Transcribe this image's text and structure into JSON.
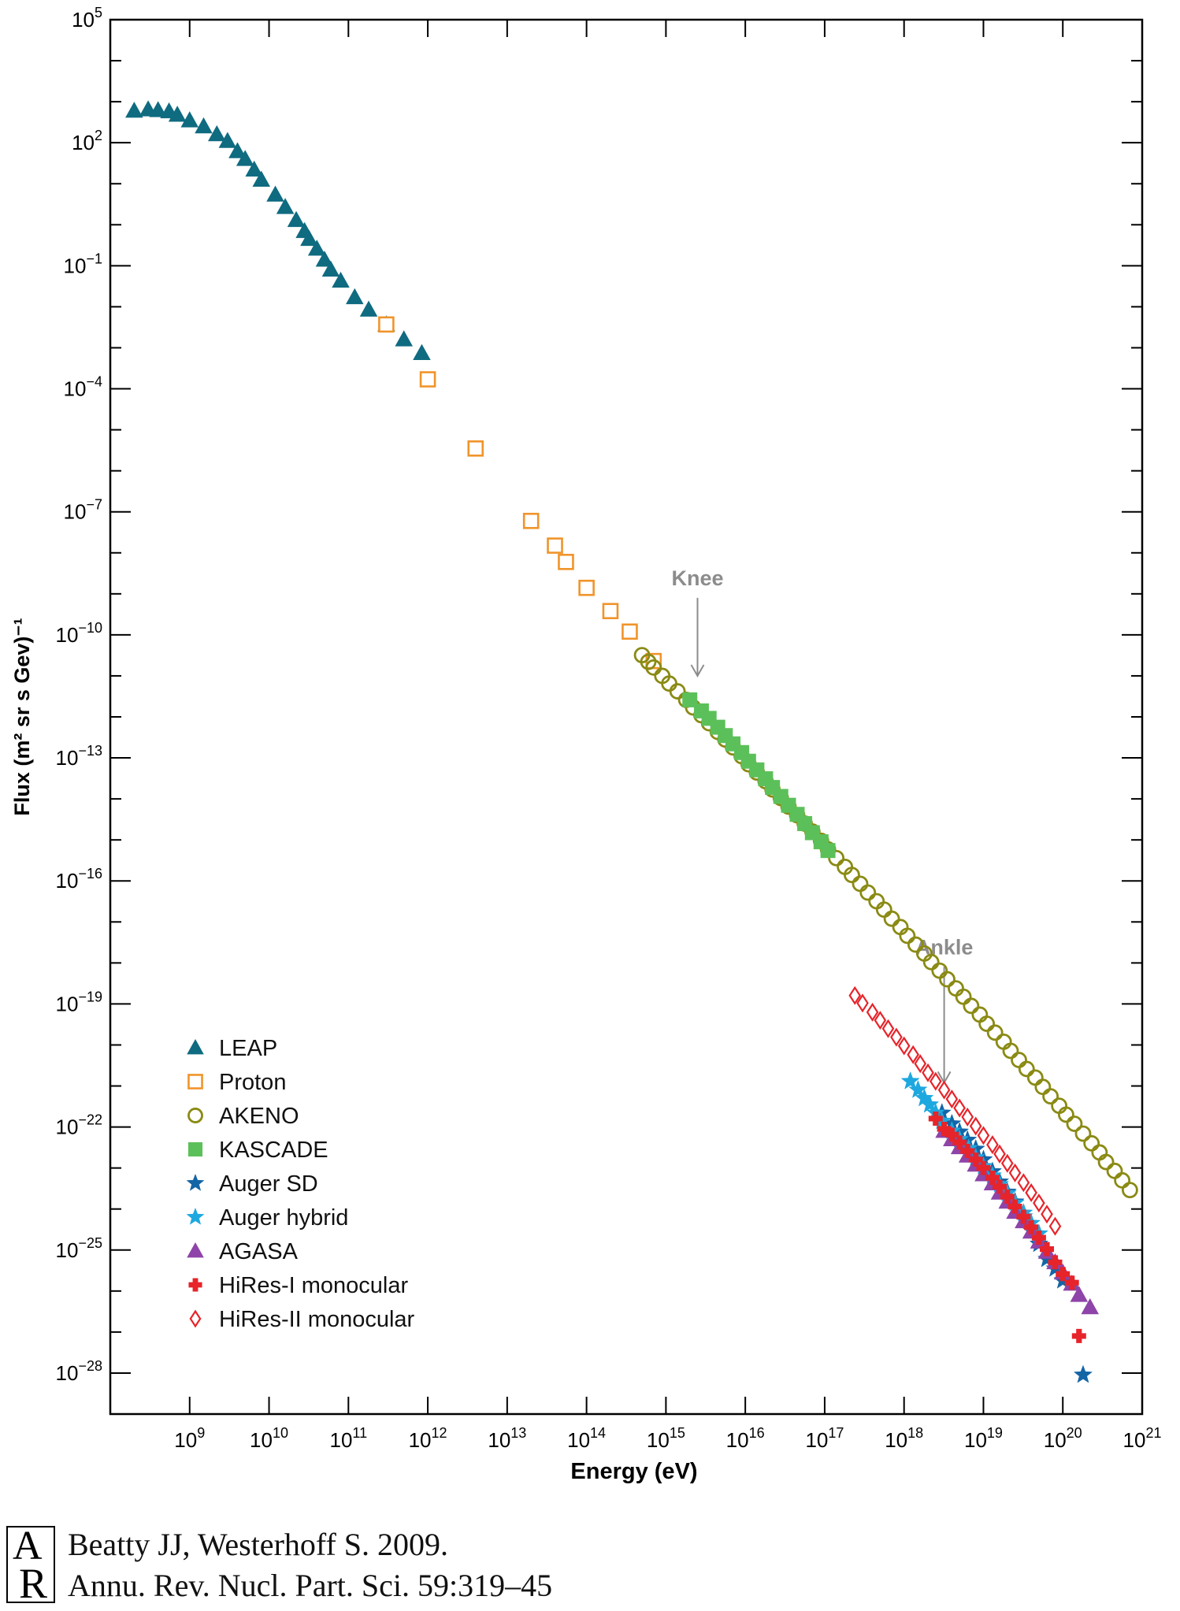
{
  "chart_data": {
    "type": "scatter",
    "title": "",
    "xlabel": "Energy (eV)",
    "ylabel": "Flux (m² sr s Gev)⁻¹",
    "xscale": "log",
    "yscale": "log",
    "xlim": [
      100000000.0,
      1e+21
    ],
    "ylim": [
      1e-29,
      100000.0
    ],
    "x_ticks": [
      {
        "value": 1000000000.0,
        "base": "10",
        "exp": "9"
      },
      {
        "value": 10000000000.0,
        "base": "10",
        "exp": "10"
      },
      {
        "value": 100000000000.0,
        "base": "10",
        "exp": "11"
      },
      {
        "value": 1000000000000.0,
        "base": "10",
        "exp": "12"
      },
      {
        "value": 10000000000000.0,
        "base": "10",
        "exp": "13"
      },
      {
        "value": 100000000000000.0,
        "base": "10",
        "exp": "14"
      },
      {
        "value": 1000000000000000.0,
        "base": "10",
        "exp": "15"
      },
      {
        "value": 1e+16,
        "base": "10",
        "exp": "16"
      },
      {
        "value": 1e+17,
        "base": "10",
        "exp": "17"
      },
      {
        "value": 1e+18,
        "base": "10",
        "exp": "18"
      },
      {
        "value": 1e+19,
        "base": "10",
        "exp": "19"
      },
      {
        "value": 1e+20,
        "base": "10",
        "exp": "20"
      },
      {
        "value": 1e+21,
        "base": "10",
        "exp": "21"
      }
    ],
    "y_ticks": [
      {
        "value": 100000.0,
        "base": "10",
        "exp": "5"
      },
      {
        "value": 100.0,
        "base": "10",
        "exp": "2"
      },
      {
        "value": 0.1,
        "base": "10",
        "exp": "−1"
      },
      {
        "value": 0.0001,
        "base": "10",
        "exp": "−4"
      },
      {
        "value": 1e-07,
        "base": "10",
        "exp": "−7"
      },
      {
        "value": 1e-10,
        "base": "10",
        "exp": "−10"
      },
      {
        "value": 1e-13,
        "base": "10",
        "exp": "−13"
      },
      {
        "value": 1e-16,
        "base": "10",
        "exp": "−16"
      },
      {
        "value": 1e-19,
        "base": "10",
        "exp": "−19"
      },
      {
        "value": 1e-22,
        "base": "10",
        "exp": "−22"
      },
      {
        "value": 1e-25,
        "base": "10",
        "exp": "−25"
      },
      {
        "value": 1e-28,
        "base": "10",
        "exp": "−28"
      }
    ],
    "grid": false,
    "legend_position": "bottom-left",
    "annotations": [
      {
        "text": "Knee",
        "x": 2500000000000000.0,
        "y_text": 1.6e-09,
        "arrow_from": 8e-10,
        "arrow_to": 1e-11
      },
      {
        "text": "Ankle",
        "x": 3.2e+18,
        "y_text": 1.6e-18,
        "arrow_from": 8e-19,
        "arrow_to": 1.2e-21
      }
    ],
    "series": [
      {
        "name": "LEAP",
        "marker": "triangle",
        "color": "#0f6b80",
        "filled": true,
        "points": [
          [
            200000000.0,
            600
          ],
          [
            300000000.0,
            650
          ],
          [
            400000000.0,
            620
          ],
          [
            550000000.0,
            580
          ],
          [
            700000000.0,
            480
          ],
          [
            1000000000.0,
            350
          ],
          [
            1500000000.0,
            250
          ],
          [
            2200000000.0,
            160
          ],
          [
            3000000000.0,
            110
          ],
          [
            4000000000.0,
            62
          ],
          [
            5000000000.0,
            40
          ],
          [
            6500000000.0,
            22
          ],
          [
            8000000000.0,
            12.5
          ],
          [
            12000000000.0,
            5.4
          ],
          [
            16000000000.0,
            2.7
          ],
          [
            22000000000.0,
            1.3
          ],
          [
            28000000000.0,
            0.7
          ],
          [
            32000000000.0,
            0.45
          ],
          [
            40000000000.0,
            0.26
          ],
          [
            50000000000.0,
            0.14
          ],
          [
            60000000000.0,
            0.08
          ],
          [
            80000000000.0,
            0.043
          ],
          [
            120000000000.0,
            0.017
          ],
          [
            180000000000.0,
            0.0085
          ],
          [
            300000000000.0,
            0.0037
          ],
          [
            500000000000.0,
            0.0016
          ],
          [
            840000000000.0,
            0.00074
          ]
        ]
      },
      {
        "name": "Proton",
        "marker": "square",
        "color": "#f0942a",
        "filled": false,
        "points": [
          [
            300000000000.0,
            0.0037
          ],
          [
            1000000000000.0,
            0.00017
          ],
          [
            4000000000000.0,
            3.5e-06
          ],
          [
            20000000000000.0,
            6e-08
          ],
          [
            40000000000000.0,
            1.5e-08
          ],
          [
            55000000000000.0,
            6e-09
          ],
          [
            100000000000000.0,
            1.4e-09
          ],
          [
            200000000000000.0,
            3.8e-10
          ],
          [
            350000000000000.0,
            1.2e-10
          ],
          [
            700000000000000.0,
            2.3e-11
          ]
        ]
      },
      {
        "name": "AKENO",
        "marker": "circle",
        "color": "#8a8a14",
        "filled": false,
        "points": [
          [
            500000000000000.0,
            3.2e-11
          ],
          [
            600000000000000.0,
            2.2e-11
          ],
          [
            700000000000000.0,
            1.6e-11
          ],
          [
            900000000000000.0,
            1e-11
          ],
          [
            1100000000000000.0,
            6.5e-12
          ],
          [
            1400000000000000.0,
            4.2e-12
          ],
          [
            1800000000000000.0,
            2.6e-12
          ],
          [
            2200000000000000.0,
            1.7e-12
          ],
          [
            2800000000000000.0,
            1.1e-12
          ],
          [
            3500000000000000.0,
            7e-13
          ],
          [
            4500000000000000.0,
            4.3e-13
          ],
          [
            5600000000000000.0,
            2.8e-13
          ],
          [
            7000000000000000.0,
            1.8e-13
          ],
          [
            9000000000000000.0,
            1.1e-13
          ],
          [
            1.1e+16,
            7e-14
          ],
          [
            1.4e+16,
            4.4e-14
          ],
          [
            1.8e+16,
            2.7e-14
          ],
          [
            2.2e+16,
            1.7e-14
          ],
          [
            2.8e+16,
            1.05e-14
          ],
          [
            3.5e+16,
            6.5e-15
          ],
          [
            4.5e+16,
            4e-15
          ],
          [
            5.6e+16,
            2.5e-15
          ],
          [
            7e+16,
            1.6e-15
          ],
          [
            9e+16,
            9.5e-16
          ],
          [
            1.1e+17,
            5.9e-16
          ],
          [
            1.4e+17,
            3.6e-16
          ],
          [
            1.8e+17,
            2.2e-16
          ],
          [
            2.2e+17,
            1.4e-16
          ],
          [
            2.8e+17,
            8.5e-17
          ],
          [
            3.5e+17,
            5.2e-17
          ],
          [
            4.5e+17,
            3.2e-17
          ],
          [
            5.6e+17,
            2e-17
          ],
          [
            7e+17,
            1.2e-17
          ],
          [
            9e+17,
            7.5e-18
          ],
          [
            1.1e+18,
            4.6e-18
          ],
          [
            1.4e+18,
            2.8e-18
          ],
          [
            1.8e+18,
            1.7e-18
          ],
          [
            2.2e+18,
            1.05e-18
          ],
          [
            2.8e+18,
            6.5e-19
          ],
          [
            3.5e+18,
            4e-19
          ],
          [
            4.5e+18,
            2.4e-19
          ],
          [
            5.6e+18,
            1.5e-19
          ],
          [
            7e+18,
            9e-20
          ],
          [
            9e+18,
            5.5e-20
          ],
          [
            1.1e+19,
            3.3e-20
          ],
          [
            1.4e+19,
            2e-20
          ],
          [
            1.8e+19,
            1.2e-20
          ],
          [
            2.2e+19,
            7.2e-21
          ],
          [
            2.8e+19,
            4.3e-21
          ],
          [
            3.5e+19,
            2.6e-21
          ],
          [
            4.5e+19,
            1.6e-21
          ],
          [
            5.6e+19,
            9.5e-22
          ],
          [
            7e+19,
            5.6e-22
          ],
          [
            9e+19,
            3.3e-22
          ],
          [
            1.1e+20,
            2e-22
          ],
          [
            1.4e+20,
            1.2e-22
          ],
          [
            1.8e+20,
            6.9e-23
          ],
          [
            2.3e+20,
            4e-23
          ],
          [
            2.9e+20,
            2.4e-23
          ],
          [
            3.5e+20,
            1.4e-23
          ],
          [
            4.5e+20,
            8.5e-24
          ],
          [
            5.6e+20,
            5e-24
          ],
          [
            7e+20,
            2.9e-24
          ]
        ]
      },
      {
        "name": "KASCADE",
        "marker": "square",
        "color": "#5cc05a",
        "filled": true,
        "points": [
          [
            2000000000000000.0,
            2.6e-12
          ],
          [
            2800000000000000.0,
            1.4e-12
          ],
          [
            3500000000000000.0,
            9.2e-13
          ],
          [
            4500000000000000.0,
            5.6e-13
          ],
          [
            5600000000000000.0,
            3.5e-13
          ],
          [
            7000000000000000.0,
            2.2e-13
          ],
          [
            9000000000000000.0,
            1.35e-13
          ],
          [
            1.1e+16,
            8.3e-14
          ],
          [
            1.4e+16,
            5.1e-14
          ],
          [
            1.8e+16,
            3.1e-14
          ],
          [
            2.2e+16,
            1.9e-14
          ],
          [
            2.8e+16,
            1.15e-14
          ],
          [
            3.5e+16,
            7e-15
          ],
          [
            4.5e+16,
            4.2e-15
          ],
          [
            5.6e+16,
            2.5e-15
          ],
          [
            7e+16,
            1.5e-15
          ],
          [
            9e+16,
            9e-16
          ],
          [
            1.1e+17,
            5.5e-16
          ]
        ]
      },
      {
        "name": "Auger SD",
        "marker": "star",
        "color": "#1465a6",
        "filled": true,
        "points": [
          [
            3e+18,
            2.2e-22
          ],
          [
            4e+18,
            1.2e-22
          ],
          [
            5e+18,
            7.6e-23
          ],
          [
            6.3e+18,
            4.8e-23
          ],
          [
            8e+18,
            2.9e-23
          ],
          [
            1e+19,
            1.6e-23
          ],
          [
            1.3e+19,
            8.2e-24
          ],
          [
            1.6e+19,
            4.6e-24
          ],
          [
            2e+19,
            2.6e-24
          ],
          [
            2.5e+19,
            1.5e-24
          ],
          [
            3.2e+19,
            6.5e-25
          ],
          [
            4e+19,
            3e-25
          ],
          [
            5e+19,
            1.4e-25
          ],
          [
            6.3e+19,
            6e-26
          ],
          [
            8e+19,
            3.5e-26
          ],
          [
            1e+20,
            1.8e-26
          ],
          [
            1.8e+20,
            9e-29
          ]
        ]
      },
      {
        "name": "Auger hybrid",
        "marker": "star",
        "color": "#1ea8e0",
        "filled": true,
        "points": [
          [
            1.2e+18,
            1.3e-21
          ],
          [
            1.5e+18,
            8e-22
          ],
          [
            1.8e+18,
            5e-22
          ],
          [
            2.1e+18,
            3.5e-22
          ],
          [
            2.5e+18,
            2.2e-22
          ],
          [
            3e+18,
            1.4e-22
          ],
          [
            4e+18,
            8e-23
          ],
          [
            5e+18,
            5e-23
          ],
          [
            6.5e+18,
            3e-23
          ],
          [
            8e+18,
            1.8e-23
          ],
          [
            1e+19,
            1.1e-23
          ],
          [
            1.3e+19,
            6.5e-24
          ],
          [
            1.6e+19,
            4e-24
          ],
          [
            2e+19,
            2.4e-24
          ],
          [
            2.5e+19,
            1.4e-24
          ],
          [
            3.2e+19,
            8e-25
          ],
          [
            4e+19,
            4.5e-25
          ],
          [
            5e+19,
            2.5e-25
          ]
        ]
      },
      {
        "name": "AGASA",
        "marker": "triangle",
        "color": "#8e44a8",
        "filled": true,
        "points": [
          [
            3.2e+18,
            8e-23
          ],
          [
            4e+18,
            5e-23
          ],
          [
            5e+18,
            3.2e-23
          ],
          [
            6.3e+18,
            2e-23
          ],
          [
            8e+18,
            1.2e-23
          ],
          [
            1e+19,
            7e-24
          ],
          [
            1.3e+19,
            4.2e-24
          ],
          [
            1.6e+19,
            2.5e-24
          ],
          [
            2e+19,
            1.5e-24
          ],
          [
            2.5e+19,
            8.5e-25
          ],
          [
            3.2e+19,
            5e-25
          ],
          [
            4e+19,
            2.8e-25
          ],
          [
            5e+19,
            1.6e-25
          ],
          [
            6.3e+19,
            9e-26
          ],
          [
            8e+19,
            5e-26
          ],
          [
            1e+20,
            2.8e-26
          ],
          [
            1.3e+20,
            1.5e-26
          ],
          [
            1.6e+20,
            8e-27
          ],
          [
            2.2e+20,
            4e-27
          ]
        ]
      },
      {
        "name": "HiRes-I monocular",
        "marker": "plus",
        "color": "#e6242a",
        "filled": true,
        "points": [
          [
            2.5e+18,
            1.6e-22
          ],
          [
            3.2e+18,
            9e-23
          ],
          [
            4e+18,
            6.5e-23
          ],
          [
            5e+18,
            4.2e-23
          ],
          [
            6.3e+18,
            2.6e-23
          ],
          [
            8e+18,
            1.6e-23
          ],
          [
            1e+19,
            1e-23
          ],
          [
            1.3e+19,
            5.8e-24
          ],
          [
            1.6e+19,
            3.5e-24
          ],
          [
            2e+19,
            2e-24
          ],
          [
            2.5e+19,
            1.15e-24
          ],
          [
            3.2e+19,
            6.5e-25
          ],
          [
            4e+19,
            3.6e-25
          ],
          [
            5e+19,
            2e-25
          ],
          [
            6.3e+19,
            1.05e-25
          ],
          [
            8e+19,
            5e-26
          ],
          [
            1e+20,
            2.6e-26
          ],
          [
            1.3e+20,
            1.6e-26
          ],
          [
            1.6e+20,
            8e-28
          ]
        ]
      },
      {
        "name": "HiRes-II monocular",
        "marker": "diamond",
        "color": "#e6242a",
        "filled": false,
        "points": [
          [
            2.4e+17,
            1.6e-19
          ],
          [
            3e+17,
            1.05e-19
          ],
          [
            4e+17,
            6.3e-20
          ],
          [
            5e+17,
            4e-20
          ],
          [
            6.3e+17,
            2.5e-20
          ],
          [
            8e+17,
            1.55e-20
          ],
          [
            1e+18,
            9.5e-21
          ],
          [
            1.3e+18,
            5.8e-21
          ],
          [
            1.6e+18,
            3.5e-21
          ],
          [
            2e+18,
            2.1e-21
          ],
          [
            2.5e+18,
            1.3e-21
          ],
          [
            3.2e+18,
            8e-22
          ],
          [
            4e+18,
            4.8e-22
          ],
          [
            5e+18,
            2.9e-22
          ],
          [
            6.3e+18,
            1.75e-22
          ],
          [
            8e+18,
            1.05e-22
          ],
          [
            1e+19,
            6.2e-23
          ],
          [
            1.3e+19,
            3.7e-23
          ],
          [
            1.6e+19,
            2.2e-23
          ],
          [
            2e+19,
            1.3e-23
          ],
          [
            2.5e+19,
            7.6e-24
          ],
          [
            3.2e+19,
            4.4e-24
          ],
          [
            4e+19,
            2.5e-24
          ],
          [
            5e+19,
            1.4e-24
          ],
          [
            6.3e+19,
            7.5e-25
          ],
          [
            8e+19,
            3.8e-25
          ]
        ]
      }
    ]
  },
  "citation": {
    "line1": "Beatty JJ, Westerhoff S. 2009.",
    "line2": "Annu. Rev. Nucl. Part. Sci. 59:319–45",
    "logo_letters": "AR"
  }
}
